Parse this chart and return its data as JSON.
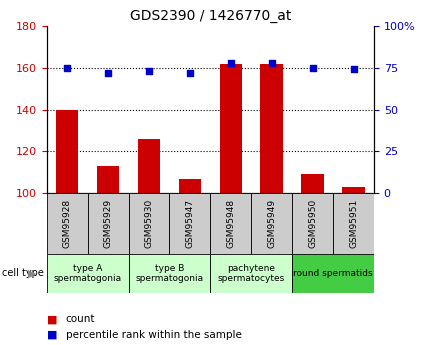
{
  "title": "GDS2390 / 1426770_at",
  "samples": [
    "GSM95928",
    "GSM95929",
    "GSM95930",
    "GSM95947",
    "GSM95948",
    "GSM95949",
    "GSM95950",
    "GSM95951"
  ],
  "counts": [
    140,
    113,
    126,
    107,
    162,
    162,
    109,
    103
  ],
  "percentiles": [
    75,
    72,
    73,
    72,
    78,
    78,
    75,
    74
  ],
  "ylim_left": [
    100,
    180
  ],
  "ylim_right": [
    0,
    100
  ],
  "yticks_left": [
    100,
    120,
    140,
    160,
    180
  ],
  "yticks_right": [
    0,
    25,
    50,
    75,
    100
  ],
  "ytick_labels_right": [
    "0",
    "25",
    "50",
    "75",
    "100%"
  ],
  "bar_color": "#cc0000",
  "dot_color": "#0000cc",
  "bar_bottom": 100,
  "cell_type_groups": [
    {
      "label": "type A\nspermatogonia",
      "start": 0,
      "end": 2,
      "color": "#ccffcc"
    },
    {
      "label": "type B\nspermatogonia",
      "start": 2,
      "end": 4,
      "color": "#ccffcc"
    },
    {
      "label": "pachytene\nspermatocytes",
      "start": 4,
      "end": 6,
      "color": "#ccffcc"
    },
    {
      "label": "round spermatids",
      "start": 6,
      "end": 8,
      "color": "#44cc44"
    }
  ],
  "background_color": "#ffffff",
  "sample_box_color": "#cccccc",
  "cell_type_label": "cell type",
  "legend_items": [
    {
      "color": "#cc0000",
      "label": "count"
    },
    {
      "color": "#0000cc",
      "label": "percentile rank within the sample"
    }
  ]
}
